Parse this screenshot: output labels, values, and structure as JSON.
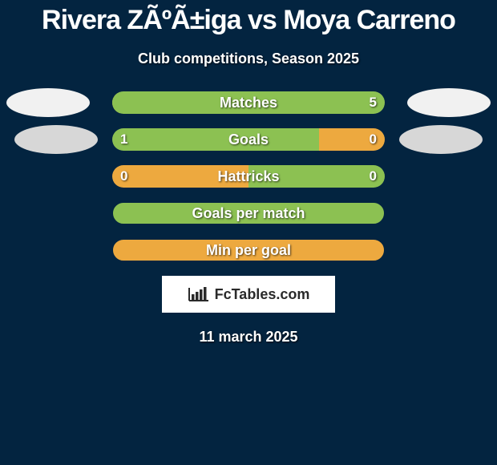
{
  "title": "Rivera ZÃºÃ±iga vs Moya Carreno",
  "subtitle": "Club competitions, Season 2025",
  "date": "11 march 2025",
  "logo_text": "FcTables.com",
  "colors": {
    "background": "#032440",
    "orange": "#eda93f",
    "green": "#8cc152",
    "blue": "#032440",
    "flag_light": "#f1f1f1",
    "flag_grey": "#d7d7d7",
    "text": "#ffffff",
    "logo_bg": "#ffffff",
    "logo_fg": "#2a2a2a"
  },
  "flags": {
    "row1_left": {
      "color": "#f1f1f1",
      "class": "left"
    },
    "row1_right": {
      "color": "#f1f1f1",
      "class": "right"
    },
    "row2_left": {
      "color": "#d7d7d7",
      "class": "l2"
    },
    "row2_right": {
      "color": "#d7d7d7",
      "class": "r2"
    }
  },
  "rows": [
    {
      "id": "matches",
      "label": "Matches",
      "type": "split",
      "left": {
        "value": "",
        "width_pct": 0,
        "color": "#eda93f"
      },
      "right": {
        "value": "5",
        "width_pct": 100,
        "color": "#8cc152"
      },
      "right_text_offset": true
    },
    {
      "id": "goals",
      "label": "Goals",
      "type": "split",
      "left": {
        "value": "1",
        "width_pct": 76,
        "color": "#8cc152"
      },
      "right": {
        "value": "0",
        "width_pct": 24,
        "color": "#eda93f"
      }
    },
    {
      "id": "hattricks",
      "label": "Hattricks",
      "type": "split",
      "left": {
        "value": "0",
        "width_pct": 50,
        "color": "#eda93f"
      },
      "right": {
        "value": "0",
        "width_pct": 50,
        "color": "#8cc152"
      }
    },
    {
      "id": "goals-per-match",
      "label": "Goals per match",
      "type": "full",
      "color": "#8cc152"
    },
    {
      "id": "min-per-goal",
      "label": "Min per goal",
      "type": "full",
      "color": "#eda93f"
    }
  ]
}
